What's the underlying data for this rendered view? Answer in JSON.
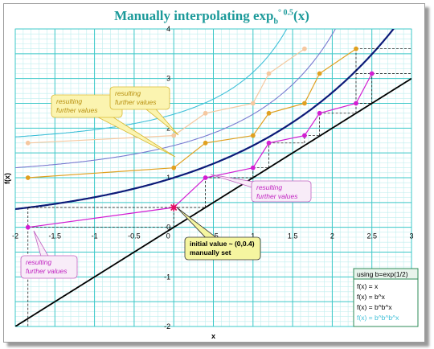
{
  "chart_data": {
    "type": "line",
    "title": {
      "prefix": "Manually interpolating exp",
      "base": "b",
      "exponent": "° 0.5",
      "suffix": "(x)"
    },
    "xlabel": "x",
    "ylabel": "f(x)",
    "xlim": [
      -2,
      3
    ],
    "ylim": [
      -2,
      4
    ],
    "grid": true,
    "x_ticks": [
      "-2",
      "-1.5",
      "-1",
      "-0.5",
      "0",
      "0.5",
      "1",
      "1.5",
      "2",
      "2.5",
      "3"
    ],
    "y_ticks": [
      "-2",
      "-1",
      "0",
      "1",
      "2",
      "3",
      "4"
    ],
    "colors": {
      "grid_major": "#3cc8c8",
      "grid_minor": "#bfeeee",
      "identity": "#000000",
      "exp": "#0c1a78",
      "exp_exp": "#7a7ad0",
      "exp_exp_exp": "#40c0d8",
      "magenta": "#d21ed2",
      "orange": "#e0a020",
      "peach": "#f5c8a0"
    },
    "curves": [
      {
        "name": "f(x) = x",
        "fn": "identity",
        "color": "#000000"
      },
      {
        "name": "f(x) = b^x",
        "fn": "exp",
        "color": "#0c1a78"
      },
      {
        "name": "f(x) = b^b^x",
        "fn": "exp_exp",
        "color": "#7a7ad0"
      },
      {
        "name": "f(x) = b^b^b^x",
        "fn": "exp_exp_exp",
        "color": "#40c0d8"
      }
    ],
    "series": [
      {
        "color": "#d21ed2",
        "points": [
          [
            -1.84,
            0.0
          ],
          [
            0,
            0.4
          ],
          [
            0.4,
            1.0
          ],
          [
            1.0,
            1.2
          ],
          [
            1.2,
            1.7
          ],
          [
            1.65,
            1.85
          ],
          [
            1.84,
            2.3
          ],
          [
            2.3,
            2.5
          ],
          [
            2.5,
            3.1
          ]
        ]
      },
      {
        "color": "#e0a020",
        "points": [
          [
            -1.84,
            1.0
          ],
          [
            0,
            1.2
          ],
          [
            0.4,
            1.7
          ],
          [
            1.0,
            1.85
          ],
          [
            1.2,
            2.3
          ],
          [
            1.65,
            2.5
          ],
          [
            1.84,
            3.1
          ],
          [
            2.3,
            3.6
          ]
        ]
      },
      {
        "color": "#f5c8a0",
        "points": [
          [
            -1.84,
            1.7
          ],
          [
            0,
            1.85
          ],
          [
            0.4,
            2.3
          ],
          [
            1.0,
            2.5
          ],
          [
            1.2,
            3.1
          ],
          [
            1.65,
            3.6
          ]
        ]
      }
    ],
    "initial_point": {
      "x": 0,
      "y": 0.4
    },
    "annotations": [
      {
        "text": [
          "resulting",
          "further values"
        ],
        "style": "magenta"
      },
      {
        "text": [
          "resulting",
          "further values"
        ],
        "style": "yellow"
      },
      {
        "text": [
          "resulting",
          "further values"
        ],
        "style": "yellow"
      },
      {
        "text": [
          "resulting",
          "further values"
        ],
        "style": "magenta"
      },
      {
        "text": [
          "initial value ~ (0,0.4)",
          "manually set"
        ],
        "style": "initial"
      }
    ],
    "legend": {
      "placement": "bottom-right",
      "header": "using b=exp(1/2)",
      "entries": [
        "f(x) = x",
        "f(x) = b^x",
        "f(x) = b^b^x",
        "f(x) = b^b^b^x"
      ]
    }
  }
}
